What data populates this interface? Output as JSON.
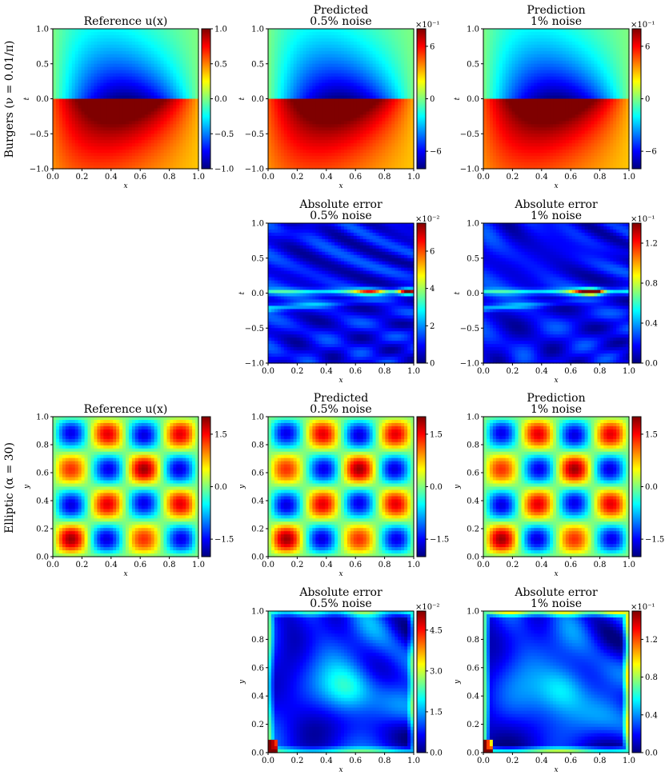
{
  "row_labels": [
    "Burgers (ν = 0.01/π)",
    "Elliptic (α = 30)"
  ],
  "colormap": "jet",
  "colormap_stops": [
    "#00007f",
    "#0000ff",
    "#007fff",
    "#00ffff",
    "#7fff7f",
    "#ffff00",
    "#ff7f00",
    "#ff0000",
    "#7f0000"
  ],
  "chart_data": [
    {
      "type": "heatmap",
      "panel": "burgers-reference",
      "title": [
        "Reference u(x)"
      ],
      "xlabel": "x",
      "ylabel": "t",
      "x_ticks": [
        "0.0",
        "0.2",
        "0.4",
        "0.6",
        "0.8",
        "1.0"
      ],
      "y_ticks": [
        "−1.0",
        "−0.5",
        "0.0",
        "0.5",
        "1.0"
      ],
      "xlim": [
        0,
        1
      ],
      "ylim": [
        -1,
        1
      ],
      "colorbar_ticks": [
        "1.0",
        "0.5",
        "0.0",
        "−0.5",
        "−1.0"
      ],
      "colorbar_exponent": "",
      "field": "burgers",
      "range": [
        -1,
        1
      ]
    },
    {
      "type": "heatmap",
      "panel": "burgers-predicted-05",
      "title": [
        "Predicted",
        "0.5% noise"
      ],
      "xlabel": "x",
      "ylabel": "t",
      "x_ticks": [
        "0.0",
        "0.2",
        "0.4",
        "0.6",
        "0.8",
        "1.0"
      ],
      "y_ticks": [
        "−1.0",
        "−0.5",
        "0.0",
        "0.5",
        "1.0"
      ],
      "xlim": [
        0,
        1
      ],
      "ylim": [
        -1,
        1
      ],
      "colorbar_ticks": [
        "6",
        "0",
        "−6"
      ],
      "colorbar_exponent": "×10⁻¹",
      "field": "burgers",
      "range": [
        -1,
        1
      ]
    },
    {
      "type": "heatmap",
      "panel": "burgers-prediction-1",
      "title": [
        "Prediction",
        "1% noise"
      ],
      "xlabel": "x",
      "ylabel": "t",
      "x_ticks": [
        "0.0",
        "0.2",
        "0.4",
        "0.6",
        "0.8",
        "1.0"
      ],
      "y_ticks": [
        "−1.0",
        "−0.5",
        "0.0",
        "0.5",
        "1.0"
      ],
      "xlim": [
        0,
        1
      ],
      "ylim": [
        -1,
        1
      ],
      "colorbar_ticks": [
        "6",
        "0",
        "−6"
      ],
      "colorbar_exponent": "×10⁻¹",
      "field": "burgers",
      "range": [
        -1,
        1
      ]
    },
    {
      "type": "heatmap",
      "panel": "burgers-error-05",
      "title": [
        "Absolute error",
        "0.5% noise"
      ],
      "xlabel": "x",
      "ylabel": "t",
      "x_ticks": [
        "0.0",
        "0.2",
        "0.4",
        "0.6",
        "0.8",
        "1.0"
      ],
      "y_ticks": [
        "−1.0",
        "−0.5",
        "0.0",
        "0.5",
        "1.0"
      ],
      "xlim": [
        0,
        1
      ],
      "ylim": [
        -1,
        1
      ],
      "colorbar_ticks": [
        "6",
        "4",
        "2",
        "0"
      ],
      "colorbar_exponent": "×10⁻²",
      "field": "burgers_error",
      "range": [
        0,
        7.5
      ]
    },
    {
      "type": "heatmap",
      "panel": "burgers-error-1",
      "title": [
        "Absolute error",
        "1% noise"
      ],
      "xlabel": "x",
      "ylabel": "t",
      "x_ticks": [
        "0.0",
        "0.2",
        "0.4",
        "0.6",
        "0.8",
        "1.0"
      ],
      "y_ticks": [
        "−1.0",
        "−0.5",
        "0.0",
        "0.5",
        "1.0"
      ],
      "xlim": [
        0,
        1
      ],
      "ylim": [
        -1,
        1
      ],
      "colorbar_ticks": [
        "1.2",
        "0.8",
        "0.4",
        "0.0"
      ],
      "colorbar_exponent": "×10⁻¹",
      "field": "burgers_error",
      "range": [
        0,
        1.4
      ]
    },
    {
      "type": "heatmap",
      "panel": "elliptic-reference",
      "title": [
        "Reference u(x)"
      ],
      "xlabel": "x",
      "ylabel": "y",
      "x_ticks": [
        "0.0",
        "0.2",
        "0.4",
        "0.6",
        "0.8",
        "1.0"
      ],
      "y_ticks": [
        "0.0",
        "0.2",
        "0.4",
        "0.6",
        "0.8",
        "1.0"
      ],
      "xlim": [
        0,
        1
      ],
      "ylim": [
        0,
        1
      ],
      "colorbar_ticks": [
        "1.5",
        "0.0",
        "−1.5"
      ],
      "colorbar_exponent": "",
      "field": "elliptic",
      "range": [
        -2,
        2
      ]
    },
    {
      "type": "heatmap",
      "panel": "elliptic-predicted-05",
      "title": [
        "Predicted",
        "0.5% noise"
      ],
      "xlabel": "x",
      "ylabel": "y",
      "x_ticks": [
        "0.0",
        "0.2",
        "0.4",
        "0.6",
        "0.8",
        "1.0"
      ],
      "y_ticks": [
        "0.0",
        "0.2",
        "0.4",
        "0.6",
        "0.8",
        "1.0"
      ],
      "xlim": [
        0,
        1
      ],
      "ylim": [
        0,
        1
      ],
      "colorbar_ticks": [
        "1.5",
        "0.0",
        "−1.5"
      ],
      "colorbar_exponent": "",
      "field": "elliptic",
      "range": [
        -2,
        2
      ]
    },
    {
      "type": "heatmap",
      "panel": "elliptic-prediction-1",
      "title": [
        "Prediction",
        "1% noise"
      ],
      "xlabel": "x",
      "ylabel": "y",
      "x_ticks": [
        "0.0",
        "0.2",
        "0.4",
        "0.6",
        "0.8",
        "1.0"
      ],
      "y_ticks": [
        "0.0",
        "0.2",
        "0.4",
        "0.6",
        "0.8",
        "1.0"
      ],
      "xlim": [
        0,
        1
      ],
      "ylim": [
        0,
        1
      ],
      "colorbar_ticks": [
        "1.5",
        "0.0",
        "−1.5"
      ],
      "colorbar_exponent": "",
      "field": "elliptic",
      "range": [
        -2,
        2
      ]
    },
    {
      "type": "heatmap",
      "panel": "elliptic-error-05",
      "title": [
        "Absolute error",
        "0.5% noise"
      ],
      "xlabel": "x",
      "ylabel": "y",
      "x_ticks": [
        "0.0",
        "0.2",
        "0.4",
        "0.6",
        "0.8",
        "1.0"
      ],
      "y_ticks": [
        "0.0",
        "0.2",
        "0.4",
        "0.6",
        "0.8",
        "1.0"
      ],
      "xlim": [
        0,
        1
      ],
      "ylim": [
        0,
        1
      ],
      "colorbar_ticks": [
        "4.5",
        "3.0",
        "1.5",
        "0.0"
      ],
      "colorbar_exponent": "×10⁻²",
      "field": "elliptic_error",
      "range": [
        0,
        5.2
      ]
    },
    {
      "type": "heatmap",
      "panel": "elliptic-error-1",
      "title": [
        "Absolute error",
        "1% noise"
      ],
      "xlabel": "x",
      "ylabel": "y",
      "x_ticks": [
        "0.0",
        "0.2",
        "0.4",
        "0.6",
        "0.8",
        "1.0"
      ],
      "y_ticks": [
        "0.0",
        "0.2",
        "0.4",
        "0.6",
        "0.8",
        "1.0"
      ],
      "xlim": [
        0,
        1
      ],
      "ylim": [
        0,
        1
      ],
      "colorbar_ticks": [
        "1.2",
        "0.8",
        "0.4",
        "0.0"
      ],
      "colorbar_exponent": "×10⁻¹",
      "field": "elliptic_error",
      "range": [
        0,
        1.5
      ]
    }
  ]
}
